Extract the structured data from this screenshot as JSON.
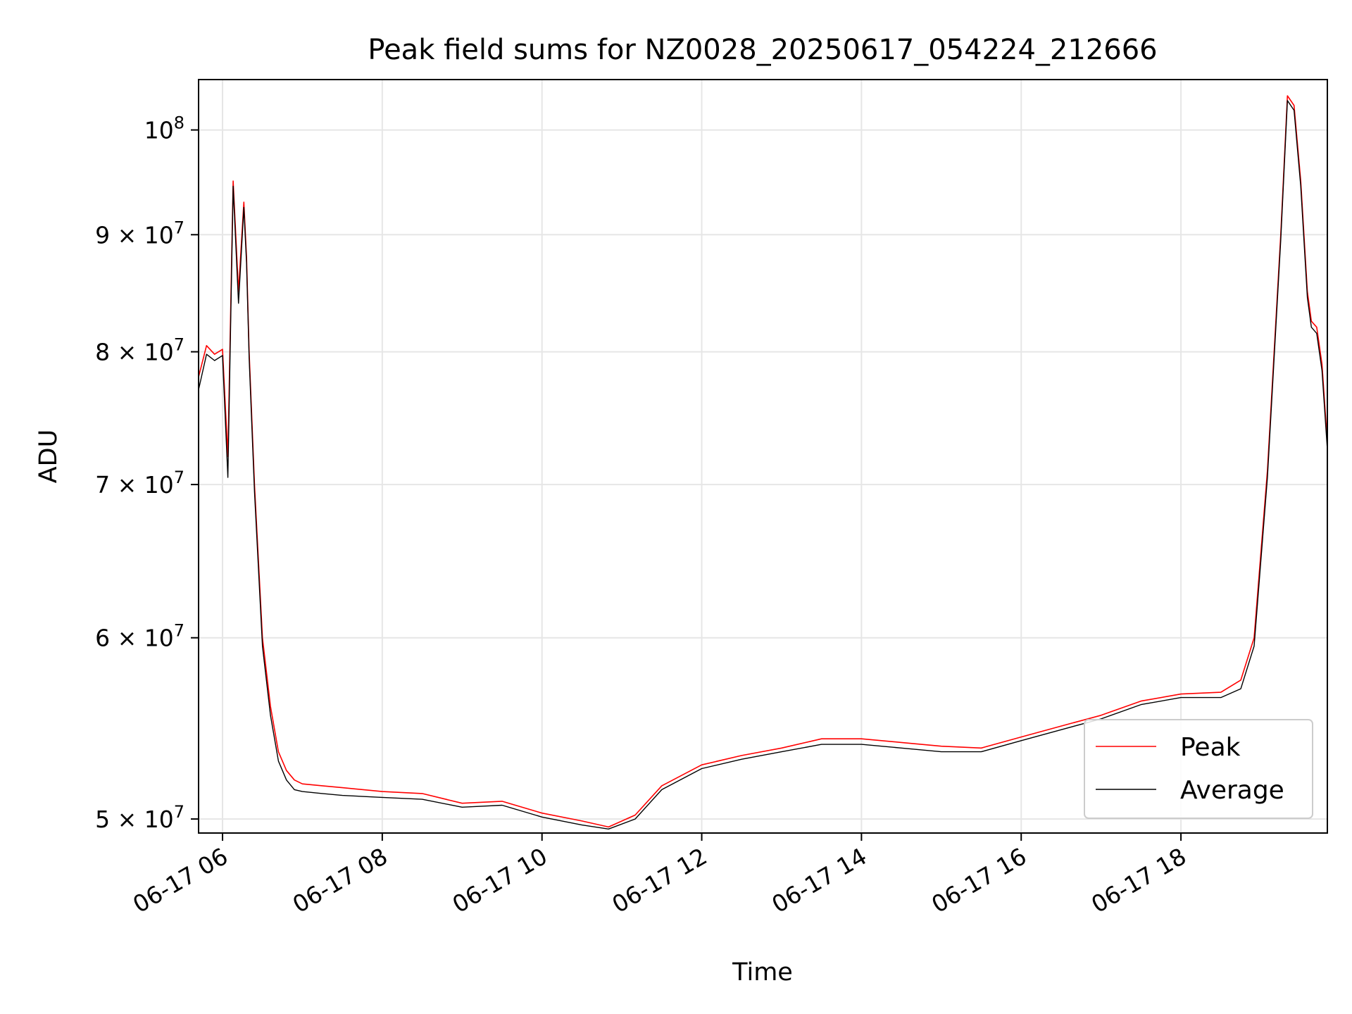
{
  "chart_data": {
    "type": "line",
    "title": "Peak field sums for NZ0028_20250617_054224_212666",
    "xlabel": "Time",
    "ylabel": "ADU",
    "x_range": [
      "06-17 05:42",
      "06-17 19:50"
    ],
    "ylim": [
      49300000,
      105200000
    ],
    "yscale": "log",
    "grid": true,
    "legend_position": "lower-right",
    "x_ticks": [
      "06-17 06",
      "06-17 08",
      "06-17 10",
      "06-17 12",
      "06-17 14",
      "06-17 16",
      "06-17 18"
    ],
    "y_ticks": [
      {
        "value": 50000000,
        "mantissa": "5",
        "exponent": "7"
      },
      {
        "value": 60000000,
        "mantissa": "6",
        "exponent": "7"
      },
      {
        "value": 70000000,
        "mantissa": "7",
        "exponent": "7"
      },
      {
        "value": 80000000,
        "mantissa": "8",
        "exponent": "7"
      },
      {
        "value": 90000000,
        "mantissa": "9",
        "exponent": "7"
      },
      {
        "value": 100000000,
        "mantissa": "",
        "exponent": "8"
      }
    ],
    "series": [
      {
        "name": "Peak",
        "color": "#ff0000",
        "x": [
          "06-17 05:42",
          "06-17 05:48",
          "06-17 05:54",
          "06-17 06:00",
          "06-17 06:04",
          "06-17 06:08",
          "06-17 06:12",
          "06-17 06:16",
          "06-17 06:18",
          "06-17 06:20",
          "06-17 06:24",
          "06-17 06:30",
          "06-17 06:36",
          "06-17 06:42",
          "06-17 06:48",
          "06-17 06:54",
          "06-17 07:00",
          "06-17 07:15",
          "06-17 07:30",
          "06-17 08:00",
          "06-17 08:30",
          "06-17 09:00",
          "06-17 09:30",
          "06-17 10:00",
          "06-17 10:30",
          "06-17 10:50",
          "06-17 11:10",
          "06-17 11:30",
          "06-17 12:00",
          "06-17 12:30",
          "06-17 13:00",
          "06-17 13:30",
          "06-17 14:00",
          "06-17 14:30",
          "06-17 15:00",
          "06-17 15:30",
          "06-17 16:00",
          "06-17 16:30",
          "06-17 17:00",
          "06-17 17:30",
          "06-17 18:00",
          "06-17 18:30",
          "06-17 18:45",
          "06-17 18:55",
          "06-17 19:05",
          "06-17 19:15",
          "06-17 19:20",
          "06-17 19:25",
          "06-17 19:30",
          "06-17 19:35",
          "06-17 19:38",
          "06-17 19:42",
          "06-17 19:46",
          "06-17 19:50"
        ],
        "y": [
          78000000,
          80500000,
          79800000,
          80200000,
          72000000,
          95000000,
          85000000,
          93000000,
          88000000,
          80000000,
          70000000,
          60000000,
          56000000,
          53500000,
          52500000,
          52000000,
          51800000,
          51700000,
          51600000,
          51400000,
          51300000,
          50800000,
          50900000,
          50300000,
          49900000,
          49600000,
          50200000,
          51700000,
          52800000,
          53300000,
          53700000,
          54200000,
          54200000,
          54000000,
          53800000,
          53700000,
          54300000,
          54900000,
          55500000,
          56300000,
          56700000,
          56800000,
          57500000,
          60000000,
          71000000,
          90000000,
          103500000,
          102500000,
          95000000,
          85000000,
          82500000,
          82000000,
          79000000,
          73000000
        ]
      },
      {
        "name": "Average",
        "color": "#000000",
        "x": [
          "06-17 05:42",
          "06-17 05:48",
          "06-17 05:54",
          "06-17 06:00",
          "06-17 06:04",
          "06-17 06:08",
          "06-17 06:12",
          "06-17 06:16",
          "06-17 06:18",
          "06-17 06:20",
          "06-17 06:24",
          "06-17 06:30",
          "06-17 06:36",
          "06-17 06:42",
          "06-17 06:48",
          "06-17 06:54",
          "06-17 07:00",
          "06-17 07:15",
          "06-17 07:30",
          "06-17 08:00",
          "06-17 08:30",
          "06-17 09:00",
          "06-17 09:30",
          "06-17 10:00",
          "06-17 10:30",
          "06-17 10:50",
          "06-17 11:10",
          "06-17 11:30",
          "06-17 12:00",
          "06-17 12:30",
          "06-17 13:00",
          "06-17 13:30",
          "06-17 14:00",
          "06-17 14:30",
          "06-17 15:00",
          "06-17 15:30",
          "06-17 16:00",
          "06-17 16:30",
          "06-17 17:00",
          "06-17 17:30",
          "06-17 18:00",
          "06-17 18:30",
          "06-17 18:45",
          "06-17 18:55",
          "06-17 19:05",
          "06-17 19:15",
          "06-17 19:20",
          "06-17 19:25",
          "06-17 19:30",
          "06-17 19:35",
          "06-17 19:38",
          "06-17 19:42",
          "06-17 19:46",
          "06-17 19:50"
        ],
        "y": [
          77000000,
          79800000,
          79300000,
          79700000,
          70500000,
          94500000,
          84000000,
          92500000,
          87500000,
          79500000,
          69500000,
          59500000,
          55500000,
          53000000,
          52000000,
          51500000,
          51400000,
          51300000,
          51200000,
          51100000,
          51000000,
          50600000,
          50700000,
          50100000,
          49700000,
          49500000,
          50000000,
          51500000,
          52600000,
          53100000,
          53500000,
          53900000,
          53900000,
          53700000,
          53500000,
          53500000,
          54100000,
          54700000,
          55300000,
          56100000,
          56500000,
          56500000,
          57000000,
          59500000,
          70500000,
          89500000,
          103000000,
          102000000,
          94500000,
          84500000,
          82000000,
          81500000,
          78500000,
          72500000
        ]
      }
    ]
  }
}
